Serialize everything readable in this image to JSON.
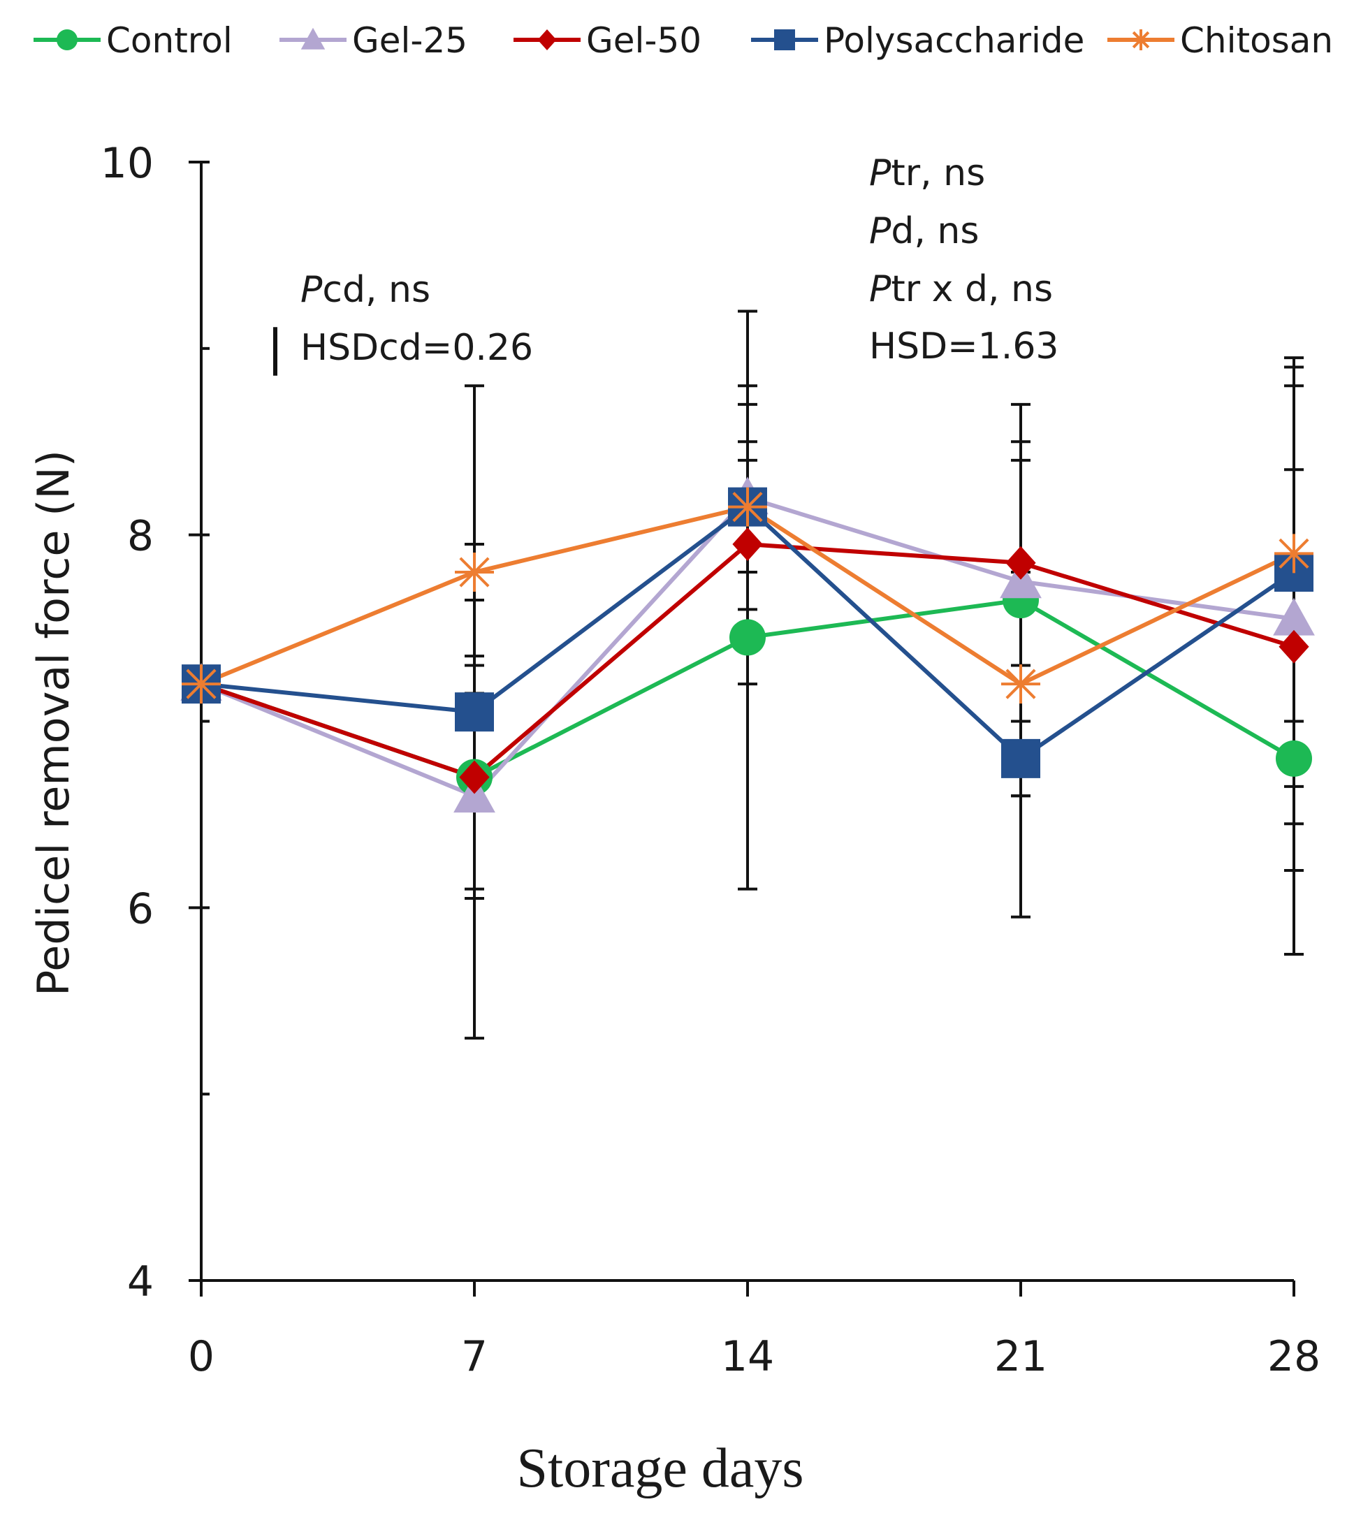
{
  "chart_data": {
    "type": "line",
    "xlabel": "Storage days",
    "ylabel": "Pedicel removal force (N)",
    "x": [
      0,
      7,
      14,
      21,
      28
    ],
    "xticks": [
      "0",
      "7",
      "14",
      "21",
      "28"
    ],
    "yticks": [
      "4",
      "6",
      "8",
      "10"
    ],
    "ylim": [
      4,
      10
    ],
    "legend_position": "top",
    "series": [
      {
        "name": "Control",
        "color": "#1db954",
        "marker": "circle",
        "values": [
          7.2,
          6.7,
          7.45,
          7.65,
          6.8
        ],
        "errors": [
          null,
          0.6,
          1.35,
          1.05,
          1.05
        ]
      },
      {
        "name": "Gel-25",
        "color": "#b3a6d1",
        "marker": "triangle",
        "values": [
          7.2,
          6.6,
          8.2,
          7.75,
          7.55
        ],
        "errors": [
          null,
          0.55,
          1.0,
          0.75,
          1.35
        ]
      },
      {
        "name": "Gel-50",
        "color": "#c00000",
        "marker": "diamond",
        "values": [
          7.2,
          6.7,
          7.95,
          7.85,
          7.4
        ],
        "errors": [
          null,
          0.65,
          0.45,
          0.55,
          0.95
        ]
      },
      {
        "name": "Polysaccharide",
        "color": "#24508e",
        "marker": "square",
        "values": [
          7.2,
          7.05,
          8.15,
          6.8,
          7.8
        ],
        "errors": [
          null,
          1.75,
          0.35,
          0.85,
          1.15
        ]
      },
      {
        "name": "Chitosan",
        "color": "#ed7d31",
        "marker": "star",
        "values": [
          7.2,
          7.8,
          8.15,
          7.2,
          7.9
        ],
        "errors": [
          null,
          0.15,
          0.55,
          0.6,
          0.9
        ]
      }
    ],
    "annotations": {
      "left": [
        {
          "p": "P",
          "rest": "cd, ns"
        },
        {
          "p": "",
          "rest": "HSDcd=0.26"
        }
      ],
      "right": [
        {
          "p": "P",
          "rest": "tr, ns"
        },
        {
          "p": "P",
          "rest": "d, ns"
        },
        {
          "p": "P",
          "rest": "tr x d, ns"
        },
        {
          "p": "",
          "rest": "HSD=1.63"
        }
      ],
      "hsd_bar_value": 0.26
    }
  }
}
